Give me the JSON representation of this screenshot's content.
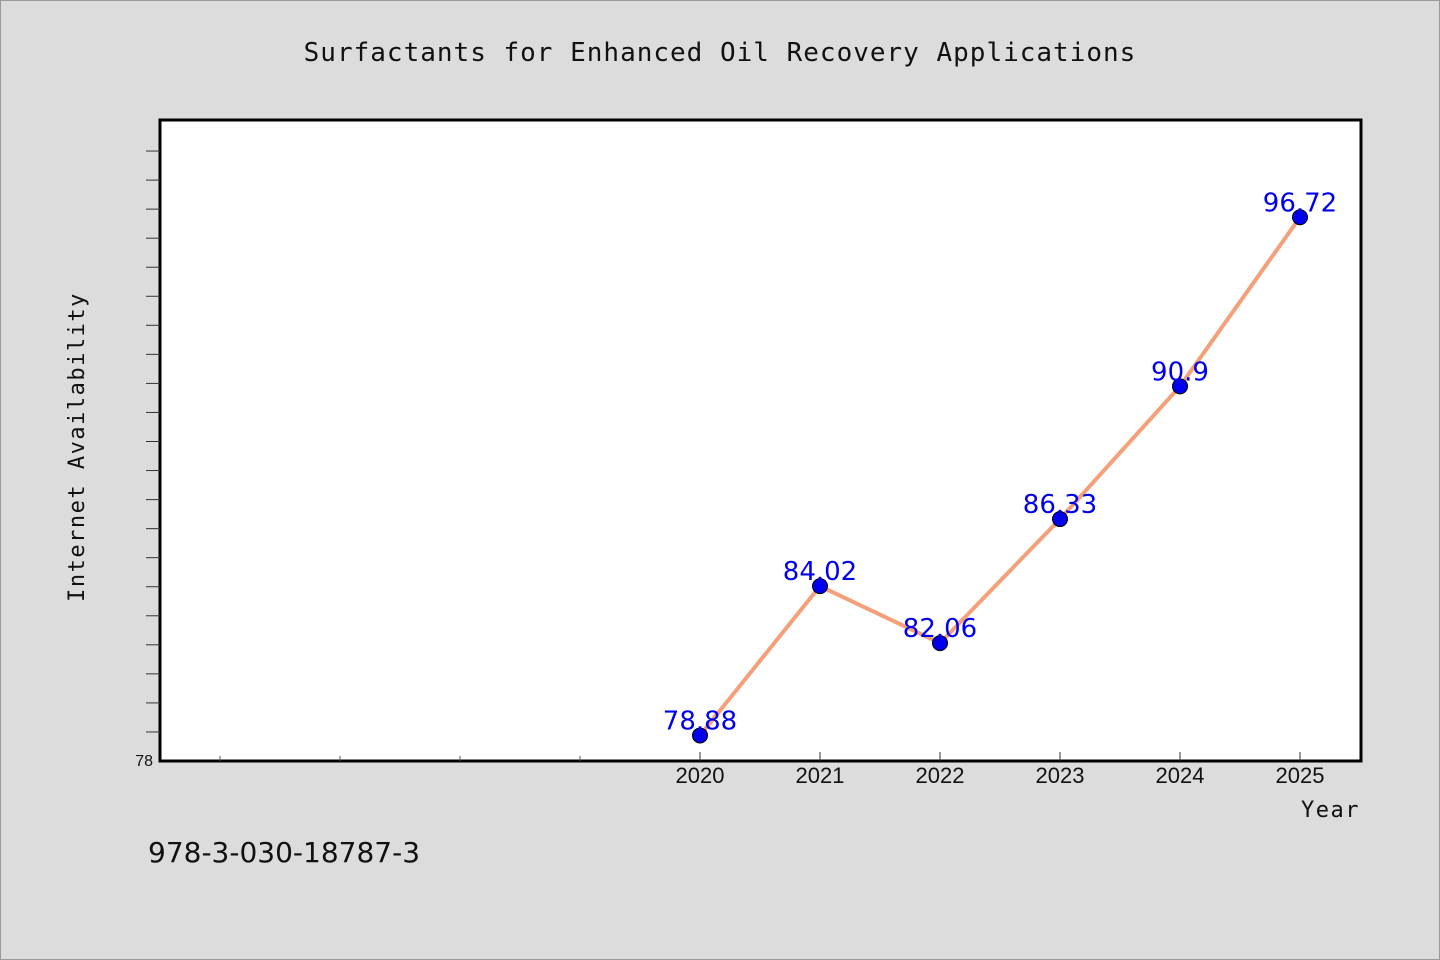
{
  "chart_data": {
    "type": "line",
    "title": "Surfactants for Enhanced Oil Recovery Applications",
    "xlabel": "Year",
    "ylabel": "Internet Availability",
    "categories": [
      "2020",
      "2021",
      "2022",
      "2023",
      "2024",
      "2025"
    ],
    "series": [
      {
        "values": [
          78.88,
          84.02,
          82.06,
          86.33,
          90.9,
          96.72
        ],
        "data_labels": [
          "78.88",
          "84.02",
          "82.06",
          "86.33",
          "90.9",
          "96.72"
        ],
        "line_color": "#f4a07a",
        "marker_color": "#0000ee"
      }
    ],
    "ylim": [
      78,
      100
    ],
    "y_tick_labels": [
      "78"
    ],
    "grid": false,
    "legend": "none"
  },
  "footer": {
    "isbn": "978-3-030-18787-3"
  },
  "colors": {
    "background": "#dcdcdc",
    "plot_background": "#ffffff",
    "line": "#f4a07a",
    "marker": "#0000ee",
    "data_label": "#0000ee"
  }
}
